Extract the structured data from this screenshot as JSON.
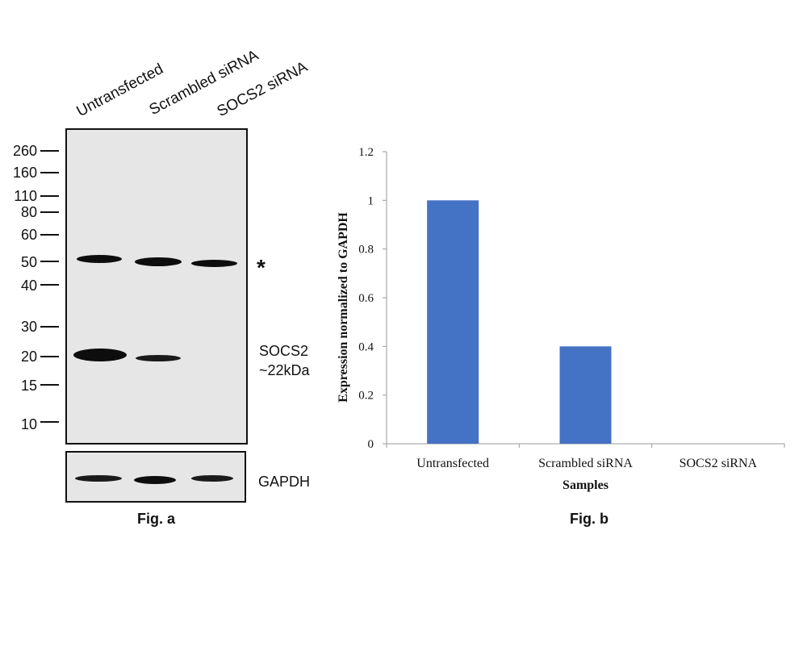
{
  "fig_a": {
    "lanes": [
      "Untransfected",
      "Scrambled siRNA",
      "SOCS2 siRNA"
    ],
    "markers": [
      "260",
      "160",
      "110",
      "80",
      "60",
      "50",
      "40",
      "30",
      "20",
      "15",
      "10"
    ],
    "asterisk": "*",
    "target_label": "SOCS2",
    "target_size": "~22kDa",
    "loading_label": "GAPDH",
    "caption": "Fig. a"
  },
  "fig_b": {
    "caption": "Fig. b"
  },
  "chart_data": {
    "type": "bar",
    "categories": [
      "Untransfected",
      "Scrambled siRNA",
      "SOCS2 siRNA"
    ],
    "values": [
      1.0,
      0.4,
      0.0
    ],
    "xlabel": "Samples",
    "ylabel": "Expression normalized to GAPDH",
    "ylim": [
      0,
      1.2
    ],
    "yticks": [
      0,
      0.2,
      0.4,
      0.6,
      0.8,
      1,
      1.2
    ],
    "ytick_labels": [
      "0",
      "0.2",
      "0.4",
      "0.6",
      "0.8",
      "1",
      "1.2"
    ],
    "bar_color": "#4472C4",
    "grid": false,
    "legend": "none"
  }
}
